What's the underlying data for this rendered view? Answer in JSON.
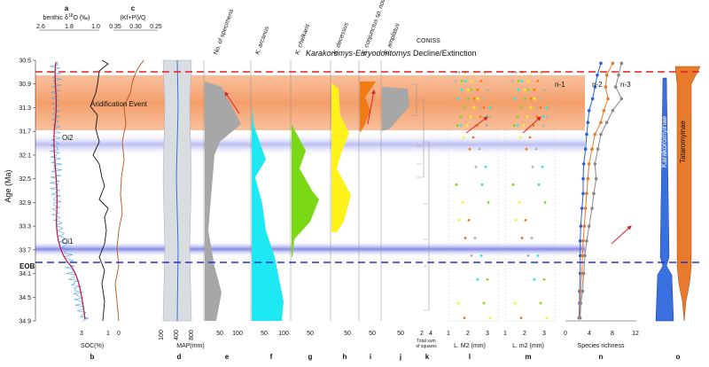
{
  "chart_data": {
    "type": "stratigraphic-panel",
    "y_axis": {
      "label": "Age (Ma)",
      "ticks": [
        30.5,
        30.9,
        31.3,
        31.7,
        32.1,
        32.5,
        32.9,
        33.3,
        33.7,
        34.1,
        34.5,
        34.9
      ],
      "ylim": [
        30.5,
        34.9
      ]
    },
    "title_annotation": "Karakoromys-Euryodontomys Decline/Extinction",
    "bands": [
      {
        "label": "Aridification Event",
        "from": 30.75,
        "to": 31.6,
        "color": "#f5a16f"
      },
      {
        "label": "Oi2",
        "from": 31.75,
        "to": 32.05,
        "color": "#b9bcf0"
      },
      {
        "label": "Oi1",
        "from": 33.6,
        "to": 33.78,
        "color": "#8f94ea"
      }
    ],
    "lines": [
      {
        "label": "",
        "age": 30.68,
        "color": "#e02020"
      },
      {
        "label": "EOB",
        "age": 33.9,
        "color": "#2233cc"
      }
    ],
    "panels": [
      {
        "letter": "a",
        "top_label": "benthic δ18O (‰)",
        "ticks": [
          "2.6",
          "1.8",
          "1.0"
        ]
      },
      {
        "letter": "b",
        "bottom_label": "SOC(%)",
        "ticks": [
          "3",
          "1"
        ]
      },
      {
        "letter": "c",
        "top_label": "(Kf+Pl)/Q",
        "ticks": [
          "0.35",
          "0.30",
          "0.25"
        ],
        "bottom_ticks": [
          "0"
        ]
      },
      {
        "letter": "d",
        "bottom_label": "MAP(mm)",
        "ticks": [
          "100",
          "400",
          "800"
        ]
      },
      {
        "letter": "e",
        "top_label": "No. of specimens",
        "ticks": [
          "50",
          "100"
        ]
      },
      {
        "letter": "f",
        "top_label": "K. arcanus",
        "ticks": [
          "50",
          "100"
        ]
      },
      {
        "letter": "g",
        "top_label": "K. chelkaris",
        "ticks": [
          "50"
        ]
      },
      {
        "letter": "h",
        "top_label": "K. decessus",
        "ticks": [
          "50"
        ]
      },
      {
        "letter": "i",
        "top_label": "K. conjunctus sp. nov",
        "ticks": [
          "50"
        ]
      },
      {
        "letter": "j",
        "top_label": "E. amplatus",
        "ticks": [
          "50"
        ]
      },
      {
        "letter": "k",
        "top_label": "CONISS",
        "bottom_label": "Total sum of squares",
        "ticks": [
          "2",
          "4"
        ]
      },
      {
        "letter": "l",
        "bottom_label": "L. M2 (mm)",
        "ticks": [
          "1",
          "2",
          "3"
        ]
      },
      {
        "letter": "m",
        "bottom_label": "L. m2 (mm)",
        "ticks": [
          "1",
          "2",
          "3"
        ]
      },
      {
        "letter": "n",
        "bottom_label": "Species richness",
        "ticks": [
          "0",
          "4",
          "8",
          "12"
        ],
        "series": [
          "n-1",
          "n-2",
          "n-3"
        ]
      },
      {
        "letter": "o",
        "series": [
          "Karakoromyinae",
          "Tataromyinae"
        ]
      }
    ],
    "species_richness": {
      "ages": [
        30.55,
        30.75,
        30.95,
        31.15,
        31.35,
        31.55,
        31.75,
        32.0,
        32.25,
        32.5,
        32.75,
        33.0,
        33.3,
        33.55,
        33.8,
        34.1,
        34.4,
        34.6,
        34.85
      ],
      "n1": [
        6,
        5.4,
        5,
        4.6,
        4,
        3.8,
        3.6,
        3.4,
        3.1,
        3,
        3,
        2.8,
        2.6,
        2.5,
        2.5,
        2.5,
        2.4,
        2.4,
        2.3
      ],
      "n2": [
        8,
        7,
        6.8,
        7.2,
        6.5,
        6,
        5,
        4.5,
        4,
        3.8,
        3.6,
        3.4,
        3.2,
        3,
        2.9,
        2.8,
        2.6,
        2.5,
        2.4
      ],
      "n3": [
        9.5,
        9,
        8.5,
        9.5,
        8,
        7,
        6,
        5.5,
        5,
        5.2,
        4.8,
        4.5,
        4,
        3.6,
        3.3,
        3.1,
        2.9,
        2.6,
        2.5
      ]
    }
  }
}
